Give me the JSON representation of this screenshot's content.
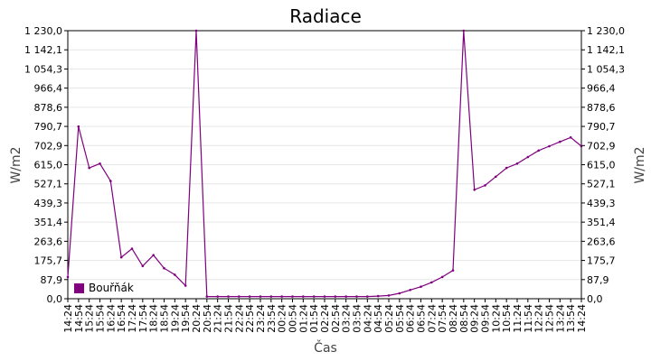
{
  "chart_data": {
    "type": "line",
    "title": "Radiace",
    "xlabel": "Čas",
    "ylabel": "W/m2",
    "ylabel_right": "W/m2",
    "ylim": [
      0,
      1230
    ],
    "yticks": [
      "1 230,0",
      "1 142,1",
      "1 054,3",
      "966,4",
      "878,6",
      "790,7",
      "702,9",
      "615,0",
      "527,1",
      "439,3",
      "351,4",
      "263,6",
      "175,7",
      "87,9",
      "0,0"
    ],
    "xticks": [
      "14:24",
      "14:54",
      "15:24",
      "15:54",
      "16:24",
      "16:54",
      "17:24",
      "17:54",
      "18:24",
      "18:54",
      "19:24",
      "19:54",
      "20:24",
      "20:54",
      "21:24",
      "21:54",
      "22:24",
      "22:54",
      "23:24",
      "23:54",
      "00:24",
      "00:54",
      "01:24",
      "01:54",
      "02:24",
      "02:54",
      "03:24",
      "03:54",
      "04:24",
      "04:54",
      "05:24",
      "05:54",
      "06:24",
      "06:54",
      "07:24",
      "07:54",
      "08:24",
      "08:54",
      "09:24",
      "09:54",
      "10:24",
      "10:54",
      "11:24",
      "11:54",
      "12:24",
      "12:54",
      "13:24",
      "13:54",
      "14:24"
    ],
    "grid": true,
    "legend": "bottom-left",
    "colors": {
      "series": "#800080",
      "grid": "#e6e6e6",
      "axis": "#000000"
    },
    "series": [
      {
        "name": "Bouřňák",
        "color": "#800080",
        "x": [
          "14:24",
          "14:54",
          "15:24",
          "15:54",
          "16:24",
          "16:54",
          "17:24",
          "17:54",
          "18:24",
          "18:54",
          "19:24",
          "19:54",
          "20:24",
          "20:54",
          "21:24",
          "21:54",
          "22:24",
          "22:54",
          "23:24",
          "23:54",
          "00:24",
          "00:54",
          "01:24",
          "01:54",
          "02:24",
          "02:54",
          "03:24",
          "03:54",
          "04:24",
          "04:54",
          "05:24",
          "05:54",
          "06:24",
          "06:54",
          "07:24",
          "07:54",
          "08:24",
          "08:54",
          "09:24",
          "09:54",
          "10:24",
          "10:54",
          "11:24",
          "11:54",
          "12:24",
          "12:54",
          "13:24",
          "13:54",
          "14:24"
        ],
        "values": [
          100,
          790,
          600,
          620,
          540,
          190,
          230,
          150,
          200,
          140,
          110,
          60,
          1230,
          10,
          10,
          10,
          10,
          10,
          10,
          10,
          10,
          10,
          10,
          10,
          10,
          10,
          10,
          10,
          10,
          12,
          15,
          25,
          40,
          55,
          75,
          100,
          130,
          1230,
          500,
          520,
          560,
          600,
          620,
          650,
          680,
          700,
          720,
          740,
          700
        ]
      }
    ]
  }
}
